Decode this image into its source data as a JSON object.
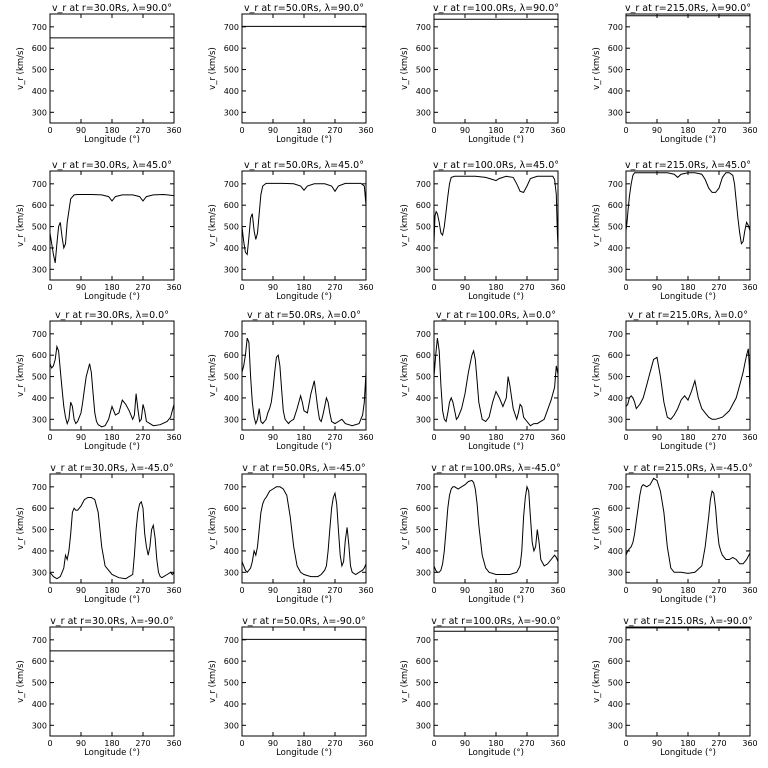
{
  "chart_data": {
    "type": "line",
    "layout": "5 rows x 4 columns of small line plots",
    "xlabel": "Longitude (°)",
    "ylabel": "v_r (km/s)",
    "xlim": [
      0,
      360
    ],
    "ylim": [
      250,
      760
    ],
    "xticks": [
      "0",
      "90",
      "180",
      "270",
      "360"
    ],
    "yticks": [
      "300",
      "400",
      "500",
      "600",
      "700"
    ],
    "line_color": "#000000",
    "panels": [
      {
        "title": "v_r at r=30.0Rs, λ=90.0°",
        "x": [
          0,
          360
        ],
        "y": [
          648,
          648
        ]
      },
      {
        "title": "v_r at r=50.0Rs, λ=90.0°",
        "x": [
          0,
          360
        ],
        "y": [
          702,
          702
        ]
      },
      {
        "title": "v_r at r=100.0Rs, λ=90.0°",
        "x": [
          0,
          360
        ],
        "y": [
          735,
          735
        ]
      },
      {
        "title": "v_r at r=215.0Rs, λ=90.0°",
        "x": [
          0,
          360
        ],
        "y": [
          752,
          752
        ]
      },
      {
        "title": "v_r at r=30.0Rs, λ=45.0°",
        "x": [
          0,
          5,
          10,
          15,
          20,
          25,
          30,
          35,
          40,
          45,
          50,
          60,
          70,
          80,
          100,
          120,
          150,
          170,
          180,
          190,
          210,
          240,
          260,
          270,
          280,
          300,
          330,
          360
        ],
        "y": [
          470,
          420,
          370,
          330,
          420,
          500,
          520,
          450,
          400,
          420,
          520,
          630,
          648,
          650,
          650,
          650,
          648,
          640,
          620,
          640,
          648,
          648,
          640,
          620,
          640,
          648,
          650,
          645
        ]
      },
      {
        "title": "v_r at r=50.0Rs, λ=45.0°",
        "x": [
          0,
          5,
          10,
          15,
          20,
          25,
          30,
          35,
          40,
          45,
          50,
          55,
          60,
          70,
          90,
          120,
          150,
          170,
          180,
          190,
          210,
          240,
          260,
          270,
          280,
          300,
          330,
          345,
          355,
          360
        ],
        "y": [
          500,
          430,
          380,
          370,
          450,
          540,
          560,
          480,
          440,
          470,
          560,
          650,
          690,
          702,
          702,
          702,
          700,
          690,
          670,
          690,
          700,
          700,
          690,
          665,
          690,
          702,
          702,
          702,
          690,
          600
        ]
      },
      {
        "title": "v_r at r=100.0Rs, λ=45.0°",
        "x": [
          0,
          3,
          6,
          10,
          15,
          20,
          25,
          30,
          35,
          40,
          45,
          50,
          60,
          70,
          90,
          120,
          150,
          170,
          180,
          190,
          210,
          230,
          240,
          250,
          260,
          270,
          280,
          300,
          330,
          345,
          350,
          355,
          358,
          360
        ],
        "y": [
          420,
          550,
          570,
          560,
          520,
          470,
          460,
          500,
          570,
          640,
          700,
          730,
          735,
          735,
          735,
          735,
          730,
          720,
          715,
          725,
          735,
          730,
          700,
          665,
          660,
          690,
          725,
          735,
          735,
          735,
          720,
          650,
          480,
          400
        ]
      },
      {
        "title": "v_r at r=215.0Rs, λ=45.0°",
        "x": [
          0,
          3,
          6,
          10,
          15,
          20,
          25,
          30,
          40,
          50,
          60,
          90,
          120,
          140,
          150,
          160,
          180,
          200,
          220,
          230,
          240,
          250,
          260,
          270,
          280,
          290,
          300,
          310,
          315,
          320,
          325,
          330,
          335,
          340,
          345,
          350,
          355,
          360
        ],
        "y": [
          480,
          520,
          580,
          640,
          700,
          740,
          752,
          752,
          752,
          752,
          752,
          752,
          752,
          745,
          730,
          745,
          752,
          752,
          745,
          720,
          680,
          660,
          660,
          680,
          730,
          752,
          752,
          740,
          700,
          620,
          540,
          470,
          420,
          430,
          480,
          520,
          505,
          480
        ]
      },
      {
        "title": "v_r at r=30.0Rs, λ=0.0°",
        "x": [
          0,
          5,
          10,
          15,
          20,
          25,
          30,
          35,
          40,
          45,
          50,
          55,
          60,
          65,
          70,
          75,
          80,
          85,
          90,
          95,
          100,
          105,
          110,
          115,
          120,
          125,
          130,
          135,
          140,
          150,
          160,
          170,
          180,
          190,
          200,
          210,
          220,
          230,
          240,
          245,
          250,
          255,
          260,
          265,
          270,
          275,
          280,
          290,
          300,
          320,
          340,
          350,
          355,
          360
        ],
        "y": [
          560,
          540,
          550,
          580,
          640,
          620,
          530,
          440,
          360,
          310,
          280,
          300,
          380,
          360,
          300,
          280,
          290,
          310,
          330,
          380,
          440,
          500,
          530,
          560,
          520,
          420,
          330,
          290,
          275,
          265,
          270,
          300,
          360,
          320,
          330,
          390,
          370,
          340,
          300,
          320,
          420,
          350,
          290,
          300,
          370,
          340,
          290,
          280,
          270,
          275,
          290,
          310,
          340,
          370
        ]
      },
      {
        "title": "v_r at r=50.0Rs, λ=0.0°",
        "x": [
          0,
          5,
          10,
          15,
          20,
          25,
          30,
          35,
          40,
          45,
          50,
          55,
          60,
          65,
          70,
          75,
          80,
          85,
          90,
          95,
          100,
          105,
          110,
          115,
          120,
          125,
          130,
          135,
          140,
          150,
          160,
          170,
          175,
          180,
          190,
          200,
          210,
          220,
          225,
          230,
          235,
          240,
          245,
          250,
          255,
          260,
          270,
          280,
          290,
          300,
          320,
          340,
          350,
          355,
          360
        ],
        "y": [
          520,
          550,
          600,
          680,
          660,
          500,
          380,
          310,
          280,
          300,
          350,
          290,
          280,
          290,
          300,
          330,
          350,
          380,
          440,
          520,
          590,
          600,
          550,
          440,
          340,
          300,
          290,
          280,
          290,
          300,
          350,
          410,
          380,
          340,
          330,
          420,
          480,
          350,
          300,
          290,
          320,
          360,
          400,
          380,
          330,
          290,
          280,
          290,
          300,
          280,
          270,
          280,
          320,
          380,
          520
        ]
      },
      {
        "title": "v_r at r=100.0Rs, λ=0.0°",
        "x": [
          0,
          5,
          10,
          15,
          20,
          25,
          30,
          35,
          40,
          45,
          50,
          55,
          60,
          65,
          70,
          80,
          90,
          100,
          110,
          115,
          120,
          125,
          130,
          140,
          150,
          160,
          170,
          180,
          190,
          200,
          210,
          215,
          220,
          230,
          240,
          245,
          250,
          255,
          260,
          270,
          280,
          290,
          300,
          320,
          340,
          350,
          355,
          360
        ],
        "y": [
          500,
          600,
          680,
          620,
          460,
          340,
          300,
          290,
          330,
          380,
          400,
          380,
          340,
          300,
          310,
          350,
          420,
          520,
          600,
          620,
          580,
          480,
          380,
          300,
          290,
          310,
          380,
          430,
          400,
          360,
          400,
          500,
          460,
          350,
          300,
          330,
          370,
          360,
          310,
          290,
          270,
          280,
          280,
          300,
          390,
          450,
          550,
          510
        ]
      },
      {
        "title": "v_r at r=215.0Rs, λ=0.0°",
        "x": [
          0,
          5,
          10,
          15,
          20,
          25,
          30,
          40,
          50,
          60,
          70,
          80,
          90,
          100,
          110,
          120,
          130,
          140,
          150,
          160,
          170,
          180,
          190,
          200,
          210,
          220,
          230,
          240,
          250,
          260,
          280,
          300,
          320,
          330,
          340,
          345,
          350,
          355,
          358,
          360
        ],
        "y": [
          360,
          370,
          400,
          410,
          400,
          380,
          350,
          370,
          400,
          460,
          520,
          580,
          590,
          500,
          380,
          310,
          300,
          320,
          350,
          390,
          410,
          390,
          430,
          480,
          400,
          350,
          330,
          310,
          300,
          300,
          310,
          340,
          400,
          460,
          520,
          560,
          600,
          630,
          550,
          390
        ]
      },
      {
        "title": "v_r at r=30.0Rs, λ=-45.0°",
        "x": [
          0,
          5,
          10,
          15,
          20,
          25,
          30,
          35,
          40,
          45,
          50,
          55,
          60,
          65,
          70,
          75,
          80,
          90,
          100,
          110,
          120,
          130,
          140,
          150,
          160,
          180,
          200,
          220,
          230,
          240,
          245,
          250,
          255,
          260,
          265,
          270,
          275,
          280,
          285,
          290,
          295,
          300,
          305,
          310,
          315,
          320,
          325,
          330,
          340,
          350,
          355,
          360
        ],
        "y": [
          300,
          290,
          280,
          275,
          270,
          275,
          280,
          300,
          320,
          380,
          360,
          400,
          480,
          580,
          600,
          590,
          590,
          610,
          640,
          650,
          650,
          640,
          580,
          420,
          330,
          290,
          275,
          270,
          280,
          290,
          380,
          500,
          580,
          620,
          630,
          600,
          480,
          420,
          380,
          420,
          500,
          520,
          460,
          360,
          300,
          280,
          275,
          280,
          290,
          300,
          290,
          300
        ]
      },
      {
        "title": "v_r at r=50.0Rs, λ=-45.0°",
        "x": [
          0,
          5,
          10,
          15,
          20,
          25,
          30,
          35,
          40,
          45,
          50,
          55,
          60,
          65,
          70,
          80,
          90,
          100,
          110,
          120,
          130,
          140,
          150,
          160,
          170,
          180,
          200,
          220,
          230,
          240,
          245,
          250,
          255,
          260,
          265,
          270,
          275,
          280,
          285,
          290,
          295,
          300,
          305,
          310,
          315,
          320,
          330,
          340,
          350,
          355,
          360
        ],
        "y": [
          350,
          330,
          310,
          300,
          310,
          320,
          350,
          400,
          380,
          420,
          500,
          580,
          620,
          640,
          650,
          680,
          690,
          700,
          700,
          690,
          660,
          560,
          420,
          330,
          300,
          290,
          280,
          280,
          290,
          310,
          330,
          400,
          500,
          600,
          650,
          670,
          620,
          500,
          380,
          330,
          350,
          450,
          510,
          430,
          330,
          300,
          290,
          300,
          310,
          320,
          340
        ]
      },
      {
        "title": "v_r at r=100.0Rs, λ=-45.0°",
        "x": [
          0,
          5,
          10,
          15,
          20,
          25,
          30,
          35,
          40,
          45,
          50,
          55,
          60,
          70,
          80,
          90,
          100,
          110,
          115,
          120,
          125,
          130,
          140,
          150,
          160,
          180,
          200,
          220,
          240,
          250,
          255,
          260,
          265,
          270,
          275,
          280,
          285,
          290,
          295,
          300,
          305,
          310,
          320,
          330,
          340,
          350,
          355,
          360
        ],
        "y": [
          330,
          310,
          300,
          300,
          310,
          340,
          400,
          500,
          600,
          660,
          690,
          700,
          700,
          690,
          700,
          710,
          725,
          730,
          720,
          690,
          620,
          520,
          380,
          320,
          300,
          290,
          290,
          290,
          300,
          330,
          400,
          560,
          650,
          700,
          680,
          560,
          440,
          400,
          420,
          500,
          440,
          360,
          330,
          340,
          360,
          380,
          370,
          350
        ]
      },
      {
        "title": "v_r at r=215.0Rs, λ=-45.0°",
        "x": [
          0,
          5,
          10,
          15,
          20,
          25,
          30,
          35,
          40,
          45,
          50,
          60,
          70,
          80,
          90,
          100,
          110,
          120,
          130,
          140,
          160,
          180,
          200,
          220,
          230,
          240,
          245,
          250,
          255,
          260,
          265,
          270,
          275,
          280,
          290,
          300,
          310,
          320,
          330,
          340,
          350,
          360
        ],
        "y": [
          380,
          400,
          410,
          420,
          440,
          480,
          540,
          600,
          660,
          700,
          710,
          700,
          710,
          740,
          730,
          680,
          580,
          420,
          320,
          300,
          300,
          295,
          300,
          330,
          420,
          560,
          640,
          680,
          670,
          600,
          500,
          430,
          400,
          380,
          360,
          360,
          370,
          360,
          340,
          340,
          360,
          390
        ]
      },
      {
        "title": "v_r at r=30.0Rs, λ=-90.0°",
        "x": [
          0,
          360
        ],
        "y": [
          648,
          648
        ]
      },
      {
        "title": "v_r at r=50.0Rs, λ=-90.0°",
        "x": [
          0,
          360
        ],
        "y": [
          702,
          702
        ]
      },
      {
        "title": "v_r at r=100.0Rs, λ=-90.0°",
        "x": [
          0,
          360
        ],
        "y": [
          740,
          740
        ]
      },
      {
        "title": "v_r at r=215.0Rs, λ=-90.0°",
        "x": [
          0,
          360
        ],
        "y": [
          756,
          756
        ]
      }
    ]
  }
}
